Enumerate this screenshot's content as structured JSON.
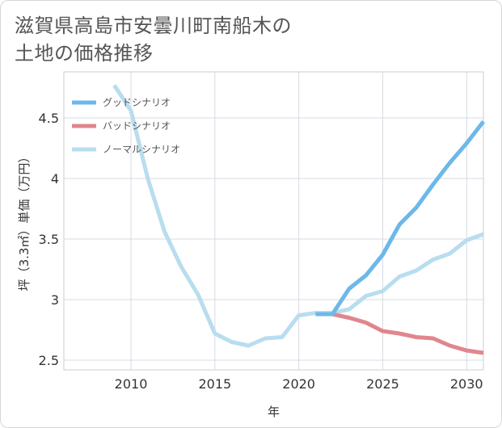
{
  "title_line1": "滋賀県高島市安曇川町南船木の",
  "title_line2": "土地の価格推移",
  "chart_data": {
    "type": "line",
    "xlabel": "年",
    "ylabel": "坪（3.3㎡）単価（万円）",
    "xlim": [
      2006,
      2031
    ],
    "ylim": [
      2.42,
      4.88
    ],
    "xticks": [
      2010,
      2015,
      2020,
      2025,
      2030
    ],
    "yticks": [
      2.5,
      3,
      3.5,
      4,
      4.5
    ],
    "ytick_labels": [
      "2.5",
      "3",
      "3.5",
      "4",
      "4.5"
    ],
    "grid": true,
    "legend_position": "top-left",
    "series": [
      {
        "name": "グッドシナリオ",
        "color": "#6cb8ea",
        "x": [
          2021,
          2022,
          2023,
          2024,
          2025,
          2026,
          2027,
          2028,
          2029,
          2030,
          2031
        ],
        "y": [
          2.88,
          2.88,
          3.09,
          3.2,
          3.37,
          3.62,
          3.76,
          3.95,
          4.13,
          4.29,
          4.47
        ]
      },
      {
        "name": "バッドシナリオ",
        "color": "#e0868e",
        "x": [
          2021,
          2022,
          2023,
          2024,
          2025,
          2026,
          2027,
          2028,
          2029,
          2030,
          2031
        ],
        "y": [
          2.88,
          2.88,
          2.85,
          2.81,
          2.74,
          2.72,
          2.69,
          2.68,
          2.62,
          2.58,
          2.56
        ]
      },
      {
        "name": "ノーマルシナリオ",
        "color": "#b8ddef",
        "x": [
          2009,
          2010,
          2011,
          2012,
          2013,
          2014,
          2015,
          2016,
          2017,
          2018,
          2019,
          2020,
          2021,
          2022,
          2023,
          2024,
          2025,
          2026,
          2027,
          2028,
          2029,
          2030,
          2031
        ],
        "y": [
          4.77,
          4.56,
          4.0,
          3.56,
          3.27,
          3.04,
          2.72,
          2.65,
          2.62,
          2.68,
          2.69,
          2.87,
          2.89,
          2.89,
          2.92,
          3.03,
          3.07,
          3.19,
          3.24,
          3.33,
          3.38,
          3.49,
          3.54
        ]
      }
    ]
  }
}
